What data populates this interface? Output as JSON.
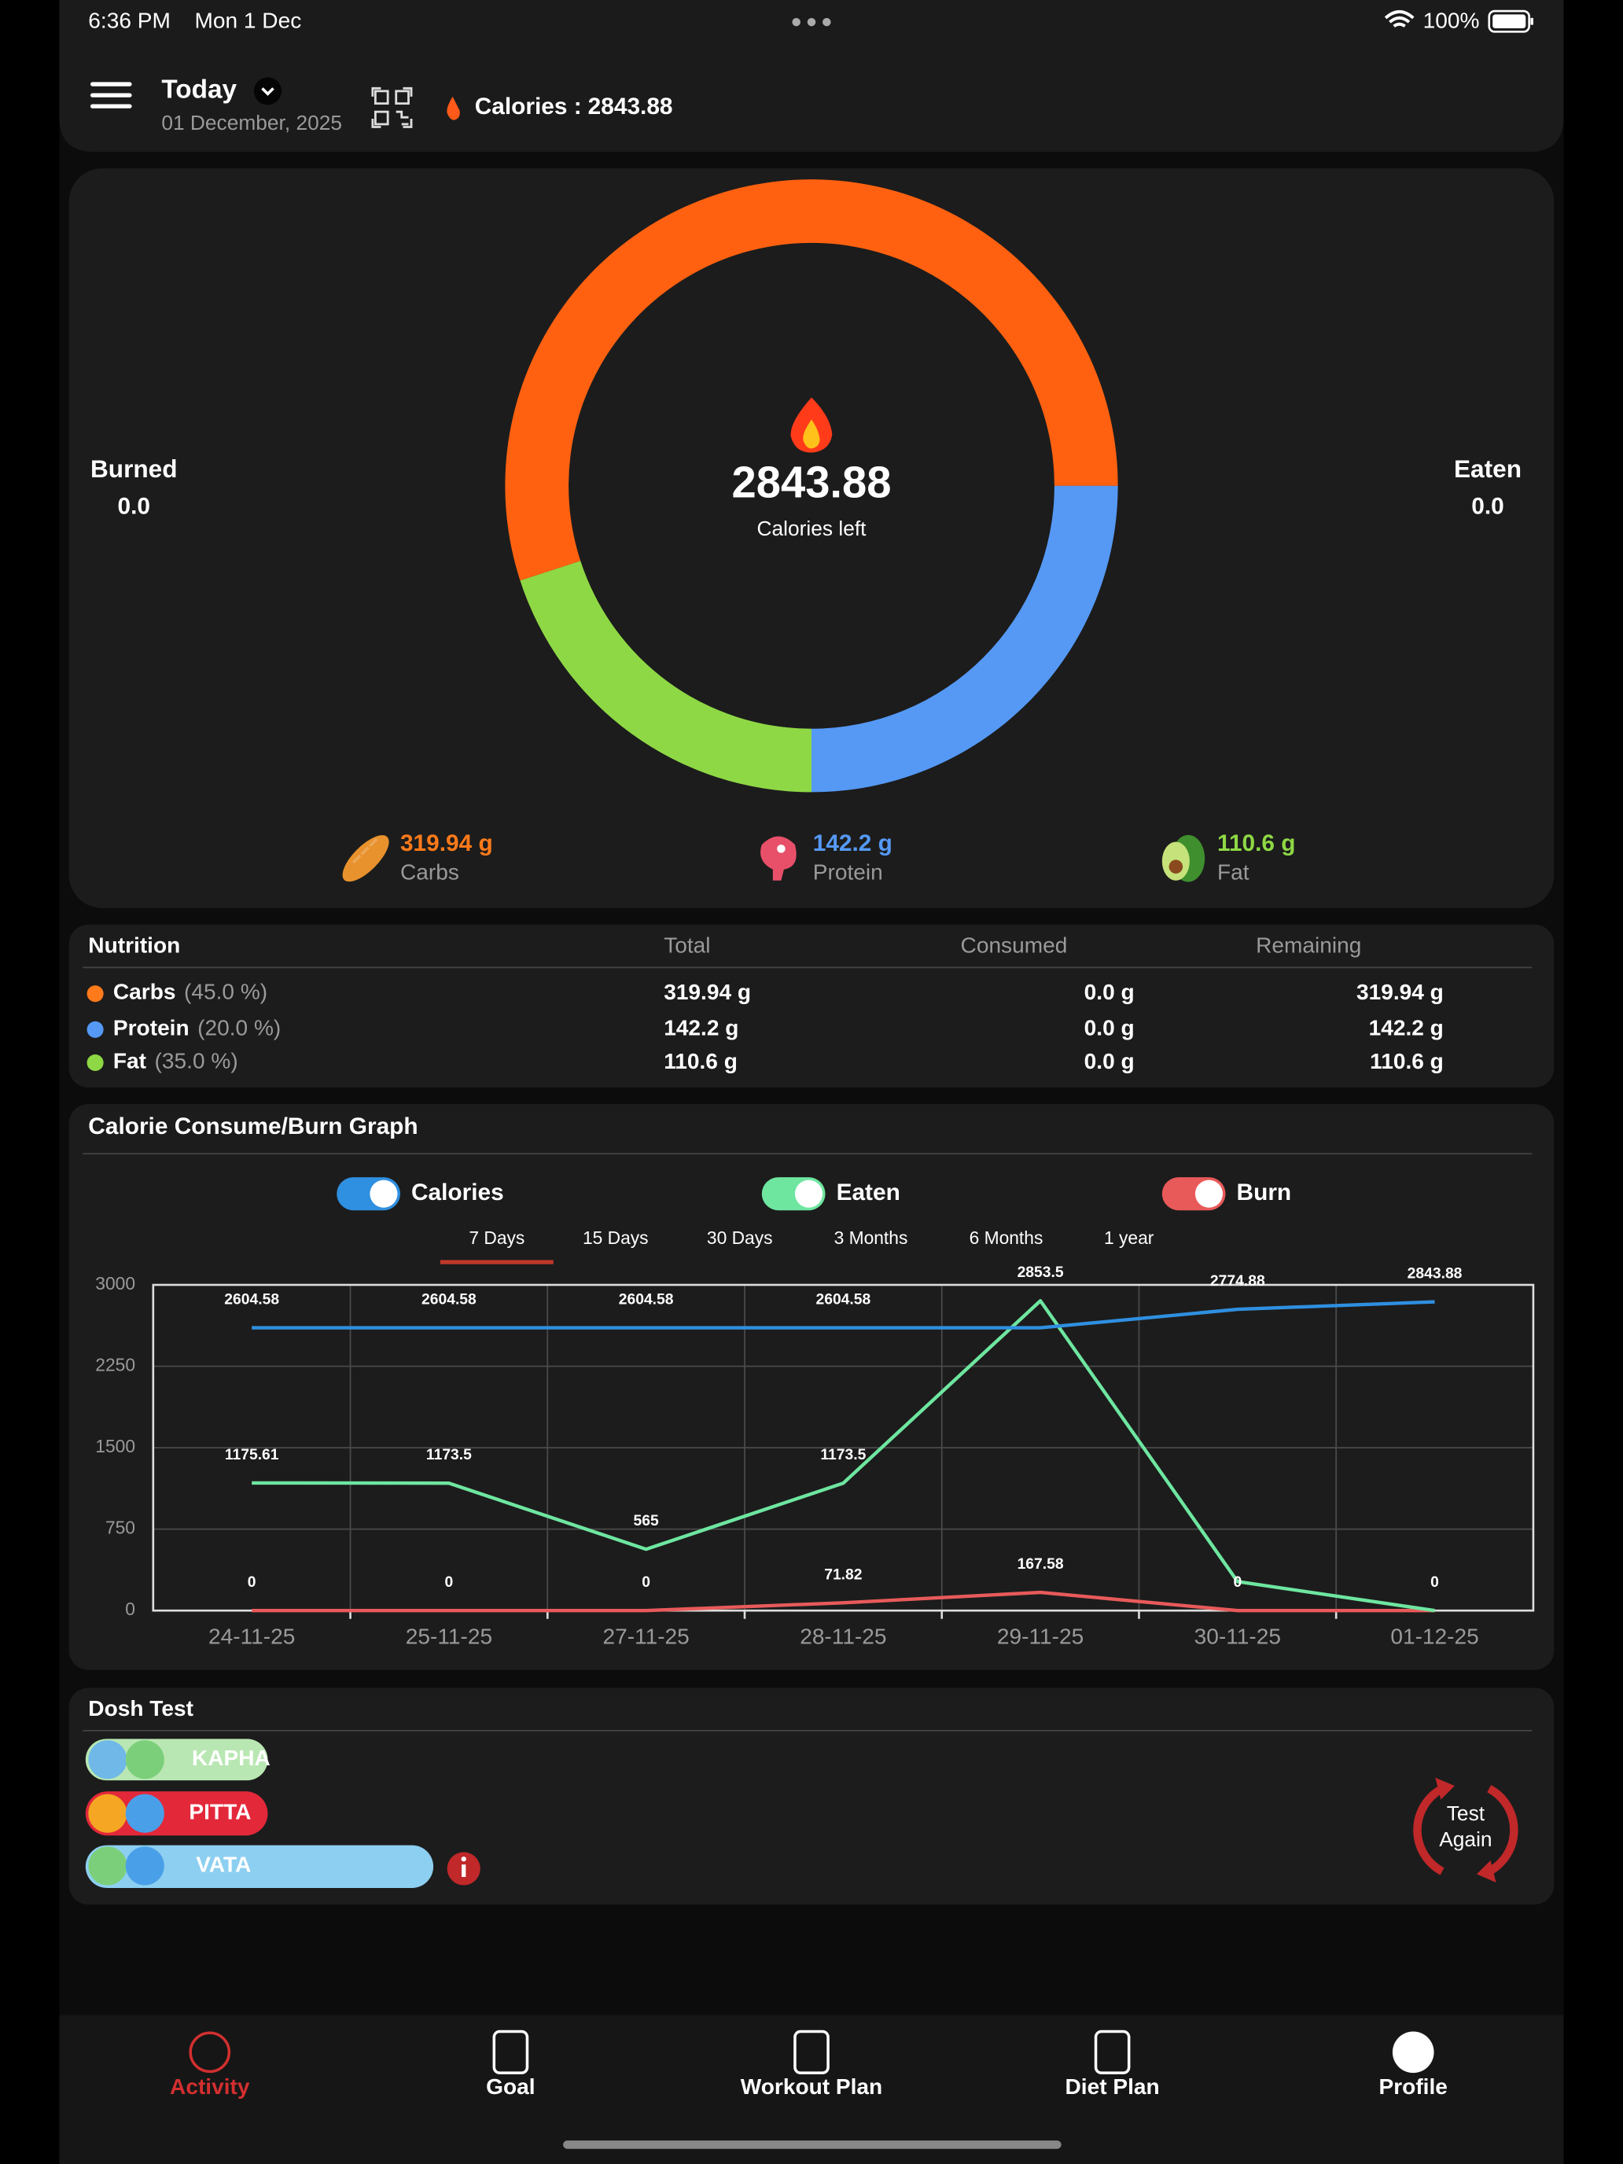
{
  "status_bar": {
    "time": "6:36 PM",
    "date": "Mon 1 Dec",
    "battery": "100%"
  },
  "header": {
    "period": "Today",
    "date": "01 December, 2025",
    "calories_label": "Calories :",
    "calories_value": "2843.88"
  },
  "summary": {
    "burned_label": "Burned",
    "burned_value": "0.0",
    "eaten_label": "Eaten",
    "eaten_value": "0.0",
    "center_value": "2843.88",
    "center_label": "Calories left"
  },
  "macros": [
    {
      "value": "319.94 g",
      "name": "Carbs",
      "color": "#ff7a1a"
    },
    {
      "value": "142.2 g",
      "name": "Protein",
      "color": "#5599f5"
    },
    {
      "value": "110.6 g",
      "name": "Fat",
      "color": "#8ed845"
    }
  ],
  "nutrition": {
    "headers": [
      "Nutrition",
      "Total",
      "Consumed",
      "Remaining"
    ],
    "rows": [
      [
        "Carbs",
        "(45.0 %)",
        "319.94 g",
        "0.0 g",
        "319.94 g"
      ],
      [
        "Protein",
        "(20.0 %)",
        "142.2 g",
        "0.0 g",
        "142.2 g"
      ],
      [
        "Fat",
        "(35.0 %)",
        "110.6 g",
        "0.0 g",
        "110.6 g"
      ]
    ]
  },
  "range_tabs": {
    "items": [
      "7 Days",
      "15 Days",
      "30 Days",
      "3 Months",
      "6 Months",
      "1 year"
    ],
    "selected": 0
  },
  "chart_data": [
    {
      "type": "donut",
      "values": [
        25,
        20,
        55
      ],
      "colors": [
        "#5599f5",
        "#8ed845",
        "#ff6110"
      ]
    },
    {
      "type": "line",
      "title": "Calorie Consume/Burn Graph",
      "categories": [
        "24-11-25",
        "25-11-25",
        "27-11-25",
        "28-11-25",
        "29-11-25",
        "30-11-25",
        "01-12-25"
      ],
      "series": [
        {
          "name": "Calories",
          "color": "#2f8fe0",
          "values": [
            2604.58,
            2604.58,
            2604.58,
            2604.58,
            2604.58,
            2774.88,
            2843.88
          ],
          "value_labels": [
            "2604.58",
            "2604.58",
            "2604.58",
            "2604.58",
            null,
            "2774.88",
            "2843.88"
          ]
        },
        {
          "name": "Eaten",
          "color": "#6ee6a0",
          "values": [
            1175.61,
            1173.5,
            565,
            1173.5,
            2853.5,
            267,
            0
          ],
          "value_labels": [
            "1175.61",
            "1173.5",
            "565",
            "1173.5",
            "2853.5",
            null,
            null
          ]
        },
        {
          "name": "Burn",
          "color": "#e85a5a",
          "values": [
            0,
            0,
            0,
            71.82,
            167.58,
            0,
            0
          ],
          "value_labels": [
            "0",
            "0",
            "0",
            "71.82",
            "167.58",
            "0",
            "0"
          ]
        }
      ],
      "ylim": [
        0,
        3000
      ],
      "yticks": [
        0,
        750,
        1500,
        2250,
        3000
      ],
      "grid": true
    }
  ],
  "dosh": {
    "title": "Dosh Test",
    "items": [
      "KAPHA",
      "PITTA",
      "VATA"
    ],
    "button": [
      "Test",
      "Again"
    ]
  },
  "nav": {
    "items": [
      "Activity",
      "Goal",
      "Workout Plan",
      "Diet Plan",
      "Profile"
    ],
    "active": 0
  }
}
